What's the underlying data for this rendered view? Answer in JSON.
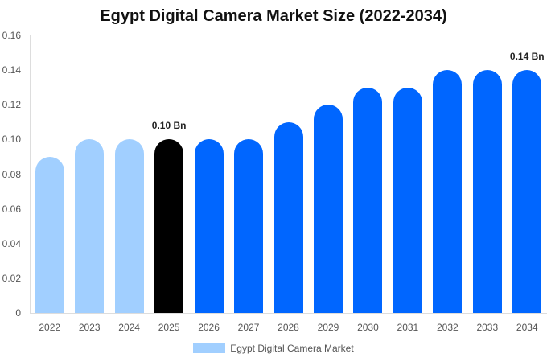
{
  "chart_data": {
    "type": "bar",
    "title": "Egypt Digital Camera Market Size (2022-2034)",
    "xlabel": "",
    "ylabel": "",
    "ylim": [
      0,
      0.16
    ],
    "yticks": [
      "0",
      "0.02",
      "0.04",
      "0.06",
      "0.08",
      "0.10",
      "0.12",
      "0.14",
      "0.16"
    ],
    "categories": [
      "2022",
      "2023",
      "2024",
      "2025",
      "2026",
      "2027",
      "2028",
      "2029",
      "2030",
      "2031",
      "2032",
      "2033",
      "2034"
    ],
    "series": [
      {
        "name": "Egypt Digital Camera Market",
        "values": [
          0.09,
          0.1,
          0.1,
          0.1,
          0.1,
          0.1,
          0.11,
          0.12,
          0.13,
          0.13,
          0.14,
          0.14,
          0.14
        ]
      }
    ],
    "bar_colors": [
      "#a1cfff",
      "#a1cfff",
      "#a1cfff",
      "#000000",
      "#0066ff",
      "#0066ff",
      "#0066ff",
      "#0066ff",
      "#0066ff",
      "#0066ff",
      "#0066ff",
      "#0066ff",
      "#0066ff"
    ],
    "annotations": [
      {
        "category": "2025",
        "text": "0.10 Bn"
      },
      {
        "category": "2034",
        "text": "0.14 Bn"
      }
    ],
    "legend": {
      "position": "bottom",
      "label": "Egypt Digital Camera Market",
      "color": "#a1cfff"
    },
    "grid": false
  }
}
